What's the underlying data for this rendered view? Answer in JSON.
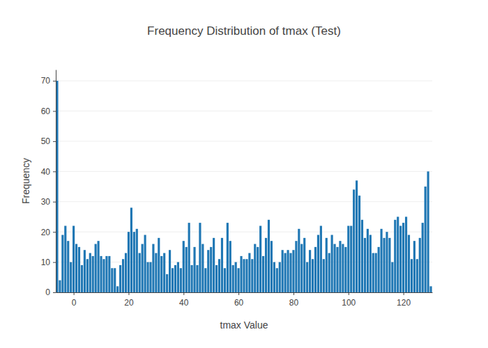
{
  "chart_data": {
    "type": "bar",
    "title": "Frequency Distribution of tmax (Test)",
    "x_label": "tmax Value",
    "y_label": "Frequency",
    "x": [
      -6,
      -5,
      -4,
      -3,
      -2,
      -1,
      0,
      1,
      2,
      3,
      4,
      5,
      6,
      7,
      8,
      9,
      10,
      11,
      12,
      13,
      14,
      15,
      16,
      17,
      18,
      19,
      20,
      21,
      22,
      23,
      24,
      25,
      26,
      27,
      28,
      29,
      30,
      31,
      32,
      33,
      34,
      35,
      36,
      37,
      38,
      39,
      40,
      41,
      42,
      43,
      44,
      45,
      46,
      47,
      48,
      49,
      50,
      51,
      52,
      53,
      54,
      55,
      56,
      57,
      58,
      59,
      60,
      61,
      62,
      63,
      64,
      65,
      66,
      67,
      68,
      69,
      70,
      71,
      72,
      73,
      74,
      75,
      76,
      77,
      78,
      79,
      80,
      81,
      82,
      83,
      84,
      85,
      86,
      87,
      88,
      89,
      90,
      91,
      92,
      93,
      94,
      95,
      96,
      97,
      98,
      99,
      100,
      101,
      102,
      103,
      104,
      105,
      106,
      107,
      108,
      109,
      110,
      111,
      112,
      113,
      114,
      115,
      116,
      117,
      118,
      119,
      120,
      121,
      122,
      123,
      124,
      125,
      126,
      127,
      128,
      129,
      130
    ],
    "values": [
      70,
      4,
      19,
      22,
      17,
      10,
      22,
      16,
      15,
      9,
      14,
      11,
      13,
      12,
      16,
      17,
      12,
      11,
      12,
      12,
      8,
      8,
      2,
      9,
      11,
      13,
      20,
      28,
      20,
      21,
      13,
      16,
      19,
      10,
      10,
      16,
      13,
      18,
      12,
      13,
      6,
      14,
      8,
      9,
      10,
      8,
      17,
      15,
      23,
      9,
      15,
      9,
      23,
      16,
      8,
      14,
      15,
      18,
      9,
      11,
      18,
      8,
      23,
      17,
      9,
      10,
      8,
      12,
      11,
      11,
      13,
      11,
      16,
      15,
      22,
      12,
      18,
      24,
      17,
      10,
      8,
      10,
      14,
      13,
      14,
      13,
      14,
      17,
      21,
      16,
      18,
      10,
      14,
      11,
      15,
      19,
      22,
      11,
      18,
      13,
      19,
      16,
      15,
      17,
      16,
      15,
      22,
      22,
      34,
      37,
      32,
      24,
      18,
      21,
      19,
      13,
      13,
      15,
      21,
      18,
      20,
      18,
      10,
      24,
      25,
      22,
      23,
      25,
      19,
      11,
      17,
      11,
      18,
      23,
      35,
      40,
      2
    ],
    "color": "#1f77b4",
    "xlim": [
      -6.5,
      130.5
    ],
    "xticks": [
      0,
      20,
      40,
      60,
      80,
      100,
      120
    ],
    "ylim": [
      0,
      73.7
    ],
    "yticks": [
      0,
      10,
      20,
      30,
      40,
      50,
      60,
      70
    ],
    "grid": true
  }
}
